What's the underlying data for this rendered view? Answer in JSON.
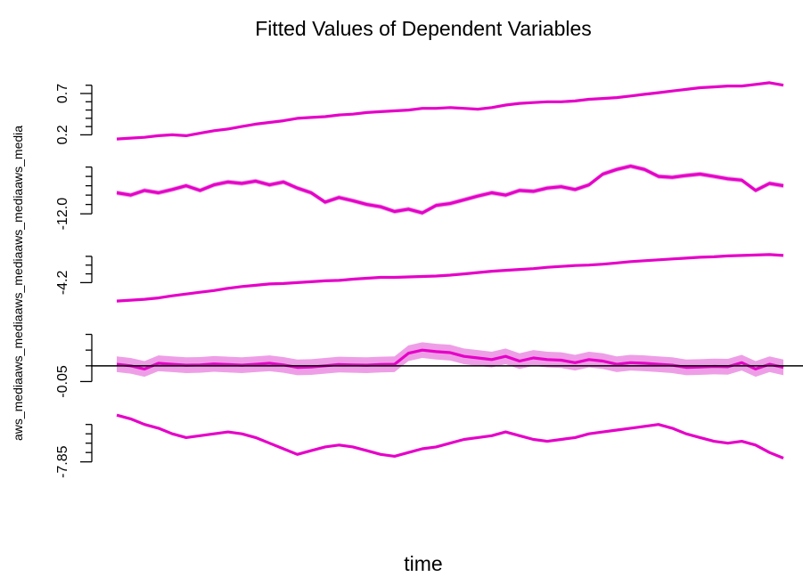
{
  "chart_data": {
    "type": "line",
    "title": "Fitted Values of Dependent Variables",
    "xlabel": "time",
    "ylabel": "aws_mediaaws_mediaaws_mediaaws_mediaaws_media",
    "colors": {
      "line": "#e600c8",
      "band": "#ee9ee6",
      "zero_line": "#000000"
    },
    "grid": false,
    "legend": "none",
    "reference_line": {
      "panel": 3,
      "value": 0
    },
    "panels": [
      {
        "tick_labels": [
          "0.2",
          "0.7"
        ],
        "ticks": [
          0.2,
          0.3,
          0.4,
          0.5,
          0.6,
          0.7,
          0.8
        ],
        "ylim": [
          0.14,
          0.84
        ],
        "band": false,
        "values": [
          0.15,
          0.16,
          0.17,
          0.19,
          0.2,
          0.19,
          0.22,
          0.25,
          0.27,
          0.3,
          0.33,
          0.35,
          0.37,
          0.4,
          0.41,
          0.42,
          0.44,
          0.45,
          0.47,
          0.48,
          0.49,
          0.5,
          0.52,
          0.52,
          0.53,
          0.52,
          0.51,
          0.53,
          0.56,
          0.58,
          0.59,
          0.6,
          0.6,
          0.61,
          0.63,
          0.64,
          0.65,
          0.67,
          0.69,
          0.71,
          0.73,
          0.75,
          0.77,
          0.78,
          0.79,
          0.79,
          0.81,
          0.83,
          0.8
        ]
      },
      {
        "tick_labels": [
          "-12.0"
        ],
        "ticks": [
          -12.0,
          -11.8,
          -11.6,
          -11.4,
          -11.2,
          -11.0
        ],
        "ylim": [
          -12.15,
          -10.95
        ],
        "band": true,
        "band_halfwidth": 0.05,
        "values": [
          -11.55,
          -11.6,
          -11.5,
          -11.55,
          -11.48,
          -11.4,
          -11.5,
          -11.38,
          -11.32,
          -11.35,
          -11.3,
          -11.38,
          -11.32,
          -11.45,
          -11.55,
          -11.75,
          -11.65,
          -11.72,
          -11.8,
          -11.85,
          -11.95,
          -11.9,
          -11.98,
          -11.82,
          -11.78,
          -11.7,
          -11.62,
          -11.55,
          -11.6,
          -11.5,
          -11.52,
          -11.45,
          -11.42,
          -11.48,
          -11.38,
          -11.15,
          -11.05,
          -10.98,
          -11.05,
          -11.2,
          -11.22,
          -11.18,
          -11.15,
          -11.2,
          -11.25,
          -11.28,
          -11.5,
          -11.35,
          -11.4
        ]
      },
      {
        "tick_labels": [
          "-4.2"
        ],
        "ticks": [
          -4.2,
          -4.0,
          -3.8,
          -3.6
        ],
        "ylim": [
          -4.7,
          -3.46
        ],
        "band": false,
        "values": [
          -4.62,
          -4.6,
          -4.58,
          -4.55,
          -4.5,
          -4.46,
          -4.42,
          -4.38,
          -4.33,
          -4.29,
          -4.26,
          -4.23,
          -4.22,
          -4.2,
          -4.18,
          -4.16,
          -4.15,
          -4.12,
          -4.1,
          -4.08,
          -4.08,
          -4.07,
          -4.06,
          -4.05,
          -4.03,
          -4.0,
          -3.97,
          -3.94,
          -3.92,
          -3.9,
          -3.88,
          -3.85,
          -3.83,
          -3.81,
          -3.8,
          -3.78,
          -3.75,
          -3.72,
          -3.7,
          -3.68,
          -3.66,
          -3.64,
          -3.62,
          -3.61,
          -3.59,
          -3.58,
          -3.57,
          -3.56,
          -3.58
        ]
      },
      {
        "tick_labels": [
          "-0.05"
        ],
        "ticks": [
          -0.05,
          0.0,
          0.05,
          0.1
        ],
        "ylim": [
          -0.06,
          0.11
        ],
        "band": true,
        "band_halfwidth": 0.025,
        "values": [
          0.005,
          0.0,
          -0.01,
          0.008,
          0.005,
          0.002,
          0.003,
          0.006,
          0.004,
          0.002,
          0.005,
          0.008,
          0.003,
          -0.005,
          -0.004,
          0.0,
          0.004,
          0.003,
          0.002,
          0.004,
          0.005,
          0.04,
          0.05,
          0.045,
          0.042,
          0.03,
          0.025,
          0.02,
          0.03,
          0.015,
          0.025,
          0.02,
          0.018,
          0.01,
          0.02,
          0.015,
          0.005,
          0.01,
          0.008,
          0.005,
          0.002,
          -0.005,
          -0.004,
          -0.002,
          -0.003,
          0.01,
          -0.01,
          0.005,
          -0.005
        ]
      },
      {
        "tick_labels": [
          "-7.85"
        ],
        "ticks": [
          -7.85,
          -7.8,
          -7.75,
          -7.7,
          -7.65
        ],
        "ylim": [
          -7.88,
          -7.58
        ],
        "band": false,
        "values": [
          -7.6,
          -7.62,
          -7.65,
          -7.67,
          -7.7,
          -7.72,
          -7.71,
          -7.7,
          -7.69,
          -7.7,
          -7.72,
          -7.75,
          -7.78,
          -7.81,
          -7.79,
          -7.77,
          -7.76,
          -7.77,
          -7.79,
          -7.81,
          -7.82,
          -7.8,
          -7.78,
          -7.77,
          -7.75,
          -7.73,
          -7.72,
          -7.71,
          -7.69,
          -7.71,
          -7.73,
          -7.74,
          -7.73,
          -7.72,
          -7.7,
          -7.69,
          -7.68,
          -7.67,
          -7.66,
          -7.65,
          -7.67,
          -7.7,
          -7.72,
          -7.74,
          -7.75,
          -7.74,
          -7.76,
          -7.8,
          -7.83
        ]
      }
    ]
  }
}
